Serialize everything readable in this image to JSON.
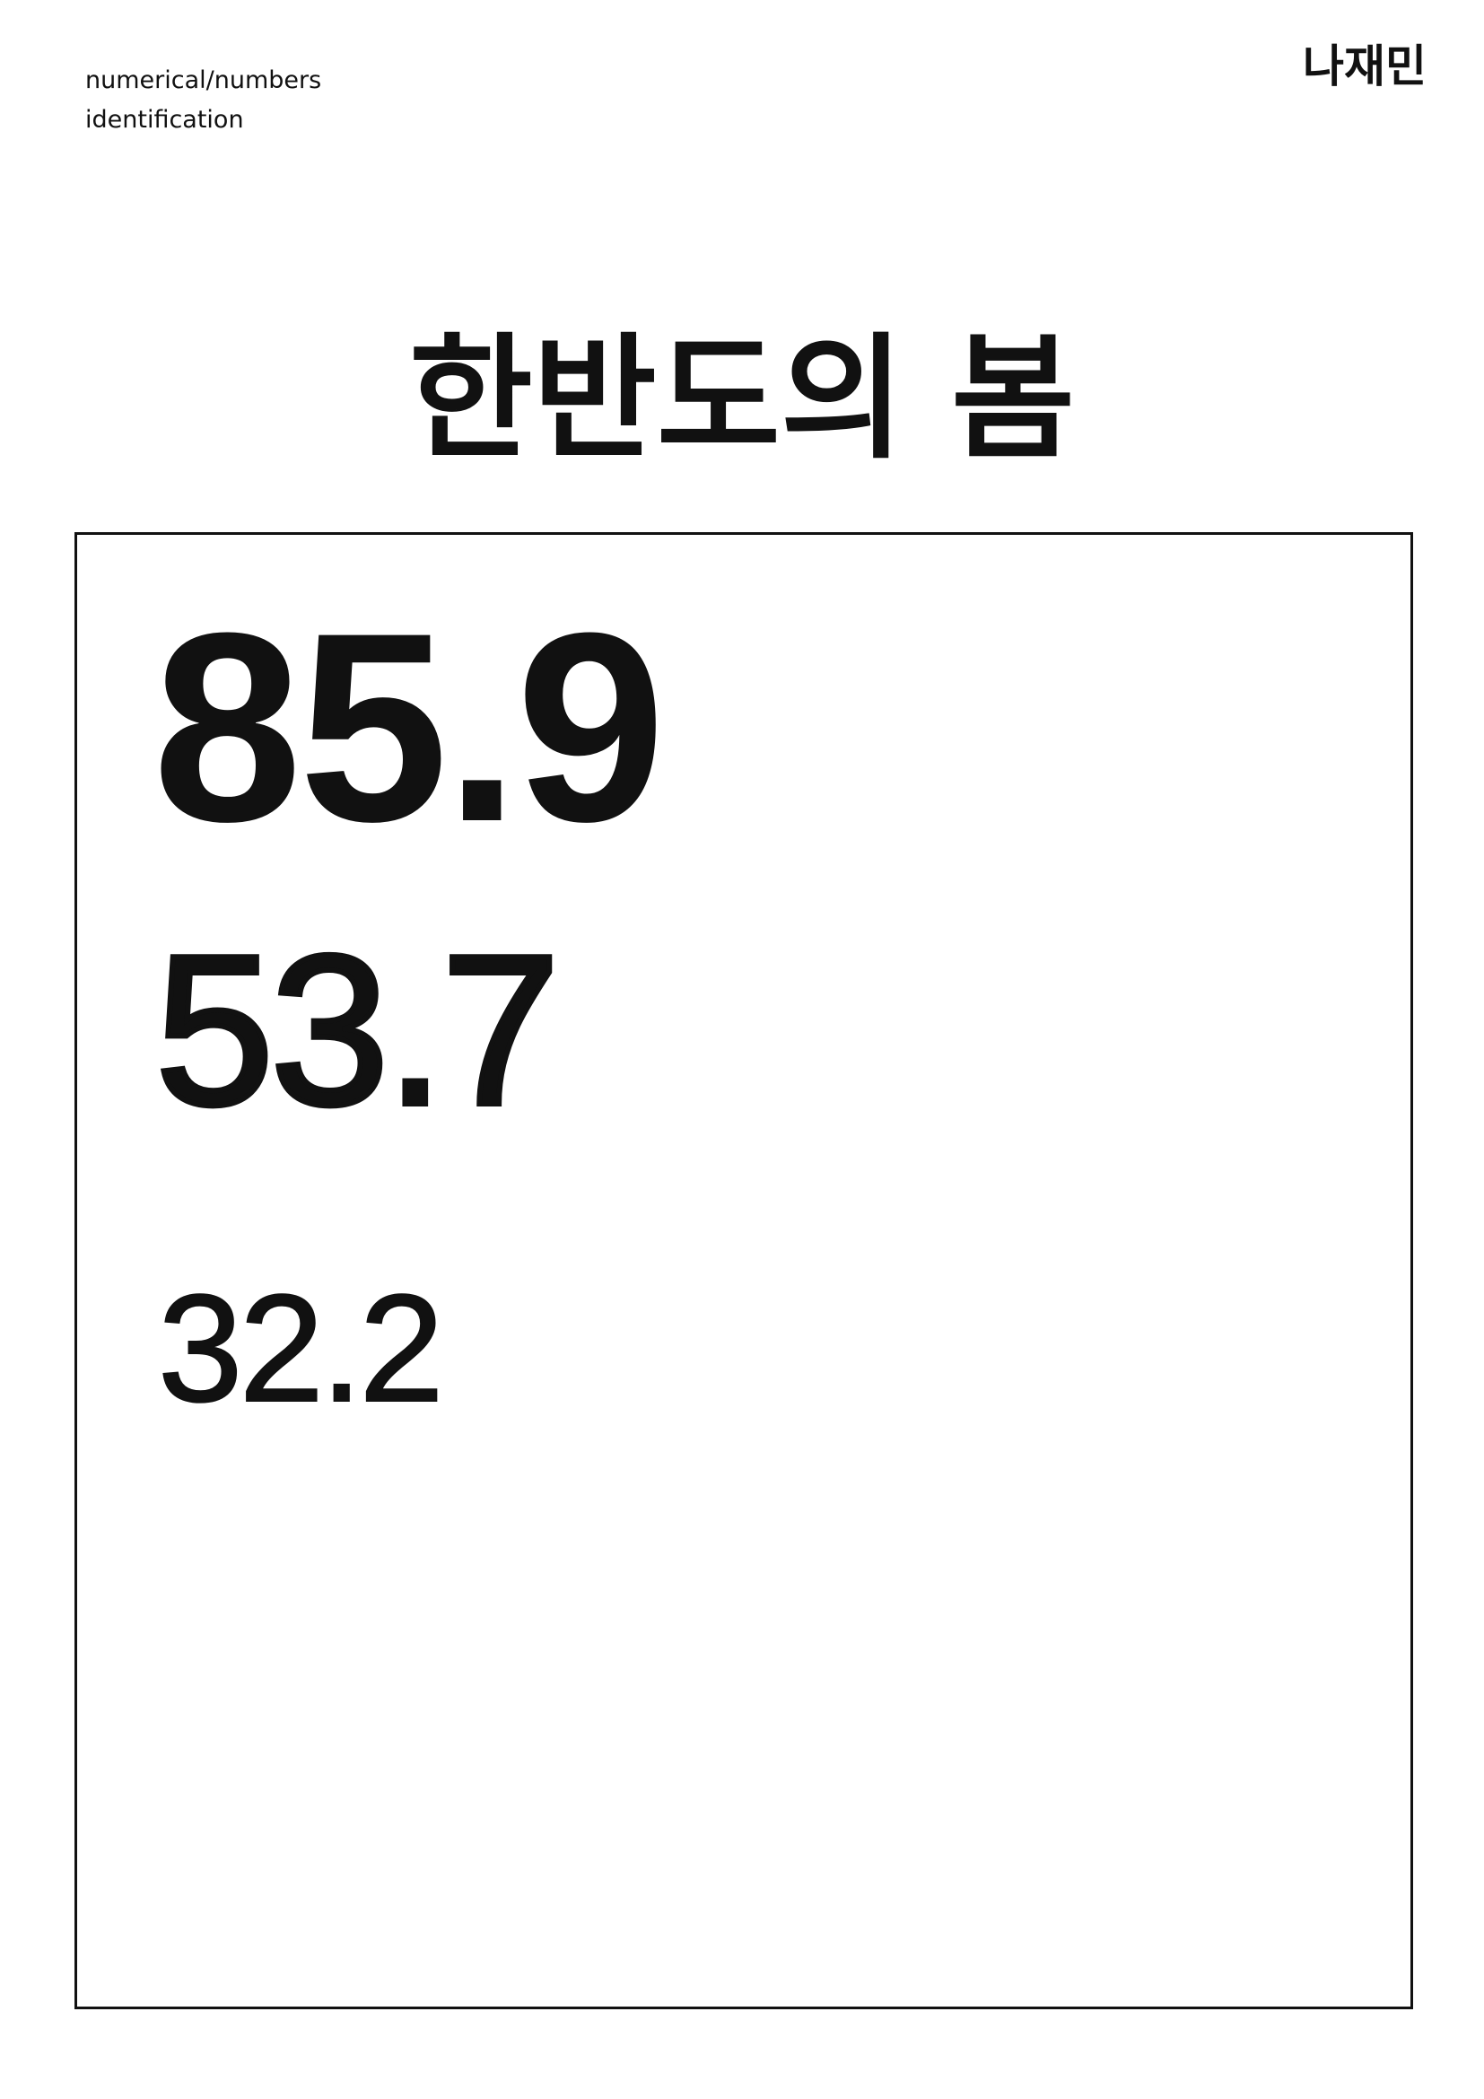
{
  "header": {
    "line1": "numerical/numbers",
    "line2": "identification",
    "author": "나재민"
  },
  "title": "한반도의 봄",
  "values": [
    "85.9",
    "53.7",
    "32.2"
  ]
}
